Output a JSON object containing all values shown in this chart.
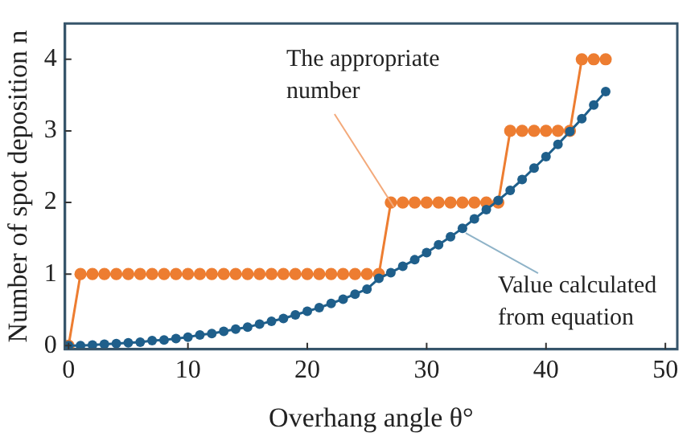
{
  "chart_data": {
    "type": "line",
    "xlabel": "Overhang angle θ°",
    "ylabel": "Number of spot deposition n",
    "x": [
      0,
      1,
      2,
      3,
      4,
      5,
      6,
      7,
      8,
      9,
      10,
      11,
      12,
      13,
      14,
      15,
      16,
      17,
      18,
      19,
      20,
      21,
      22,
      23,
      24,
      25,
      26,
      27,
      28,
      29,
      30,
      31,
      32,
      33,
      34,
      35,
      36,
      37,
      38,
      39,
      40,
      41,
      42,
      43,
      44,
      45
    ],
    "series": [
      {
        "name": "Value calculated from equation",
        "color": "#1f5f8b",
        "values": [
          0,
          0,
          0.01,
          0.02,
          0.03,
          0.04,
          0.05,
          0.07,
          0.08,
          0.1,
          0.12,
          0.15,
          0.17,
          0.2,
          0.23,
          0.26,
          0.3,
          0.34,
          0.38,
          0.43,
          0.48,
          0.53,
          0.59,
          0.65,
          0.72,
          0.79,
          0.94,
          1.02,
          1.11,
          1.2,
          1.3,
          1.41,
          1.52,
          1.64,
          1.77,
          1.9,
          2.03,
          2.17,
          2.32,
          2.48,
          2.64,
          2.81,
          2.99,
          3.17,
          3.36,
          3.55
        ]
      },
      {
        "name": "The appropriate number",
        "color": "#ed7d31",
        "values": [
          0,
          1,
          1,
          1,
          1,
          1,
          1,
          1,
          1,
          1,
          1,
          1,
          1,
          1,
          1,
          1,
          1,
          1,
          1,
          1,
          1,
          1,
          1,
          1,
          1,
          1,
          1,
          2,
          2,
          2,
          2,
          2,
          2,
          2,
          2,
          2,
          2,
          3,
          3,
          3,
          3,
          3,
          3,
          4,
          4,
          4
        ]
      }
    ],
    "xlim": [
      -0.3,
      51
    ],
    "ylim": [
      -0.05,
      4.5
    ],
    "xticks": [
      0,
      10,
      20,
      30,
      40,
      50
    ],
    "yticks": [
      0,
      1,
      2,
      3,
      4
    ],
    "grid": false,
    "legend": false,
    "marker": "circle",
    "line_style": "solid"
  }
}
